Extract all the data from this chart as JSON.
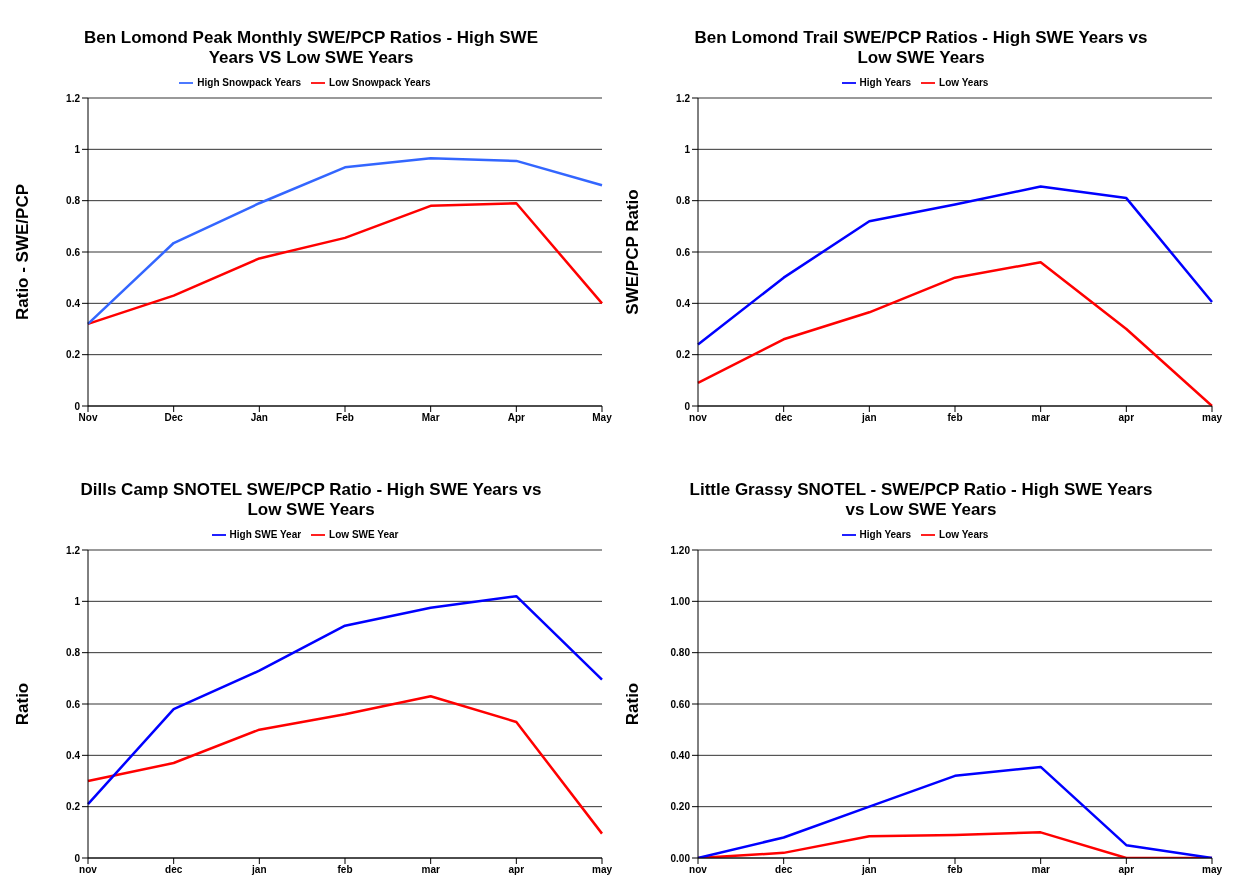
{
  "chart_data": [
    {
      "type": "line",
      "title": "Ben Lomond Peak Monthly SWE/PCP Ratios - High SWE Years VS Low SWE Years",
      "ylabel": "Ratio - SWE/PCP",
      "categories": [
        "Nov",
        "Dec",
        "Jan",
        "Feb",
        "Mar",
        "Apr",
        "May"
      ],
      "ylim": [
        0,
        1.2
      ],
      "yticks": [
        0,
        0.2,
        0.4,
        0.6,
        0.8,
        1,
        1.2
      ],
      "grid": "y",
      "legend": "top",
      "series": [
        {
          "name": "Low Snowpack Years",
          "color": "#ff0000",
          "values": [
            0.32,
            0.43,
            0.575,
            0.655,
            0.78,
            0.79,
            0.4
          ]
        },
        {
          "name": "High Snowpack Years",
          "color": "#3366ff",
          "values": [
            0.32,
            0.635,
            0.79,
            0.93,
            0.965,
            0.955,
            0.86
          ]
        }
      ]
    },
    {
      "type": "line",
      "title": "Ben Lomond Trail SWE/PCP Ratios - High SWE Years vs Low SWE Years",
      "ylabel": "SWE/PCP Ratio",
      "categories": [
        "nov",
        "dec",
        "jan",
        "feb",
        "mar",
        "apr",
        "may"
      ],
      "ylim": [
        0,
        1.2
      ],
      "yticks": [
        0,
        0.2,
        0.4,
        0.6,
        0.8,
        1,
        1.2
      ],
      "grid": "y",
      "legend": "top",
      "series": [
        {
          "name": "High Years",
          "color": "#0000ff",
          "values": [
            0.24,
            0.5,
            0.72,
            0.785,
            0.855,
            0.81,
            0.405
          ]
        },
        {
          "name": "Low Years",
          "color": "#ff0000",
          "values": [
            0.09,
            0.26,
            0.365,
            0.5,
            0.56,
            0.3,
            0
          ]
        }
      ]
    },
    {
      "type": "line",
      "title": "Dills Camp SNOTEL SWE/PCP Ratio - High SWE Years vs Low SWE Years",
      "ylabel": "Ratio",
      "categories": [
        "nov",
        "dec",
        "jan",
        "feb",
        "mar",
        "apr",
        "may"
      ],
      "ylim": [
        0,
        1.2
      ],
      "yticks": [
        0,
        0.2,
        0.4,
        0.6,
        0.8,
        1,
        1.2
      ],
      "grid": "y",
      "legend": "top",
      "series": [
        {
          "name": "Low SWE Year",
          "color": "#ff0000",
          "values": [
            0.3,
            0.37,
            0.5,
            0.56,
            0.63,
            0.53,
            0.095
          ]
        },
        {
          "name": "High SWE Year",
          "color": "#0000ff",
          "values": [
            0.21,
            0.58,
            0.73,
            0.905,
            0.975,
            1.02,
            0.695
          ]
        }
      ]
    },
    {
      "type": "line",
      "title": "Little Grassy SNOTEL - SWE/PCP Ratio - High SWE Years vs Low SWE Years",
      "ylabel": "Ratio",
      "categories": [
        "nov",
        "dec",
        "jan",
        "feb",
        "mar",
        "apr",
        "may"
      ],
      "ylim": [
        0,
        1.2
      ],
      "yticks": [
        {
          "value": 0,
          "label": "0.00"
        },
        {
          "value": 0.2,
          "label": "0.20"
        },
        {
          "value": 0.4,
          "label": "0.40"
        },
        {
          "value": 0.6,
          "label": "0.60"
        },
        {
          "value": 0.8,
          "label": "0.80"
        },
        {
          "value": 1,
          "label": "1.00"
        },
        {
          "value": 1.2,
          "label": "1.20"
        }
      ],
      "grid": "y",
      "legend": "top",
      "series": [
        {
          "name": "Low Years",
          "color": "#ff0000",
          "values": [
            0,
            0.02,
            0.085,
            0.09,
            0.1,
            0,
            0
          ]
        },
        {
          "name": "High Years",
          "color": "#0000ff",
          "values": [
            0,
            0.08,
            0.2,
            0.32,
            0.355,
            0.05,
            0
          ]
        }
      ]
    }
  ]
}
